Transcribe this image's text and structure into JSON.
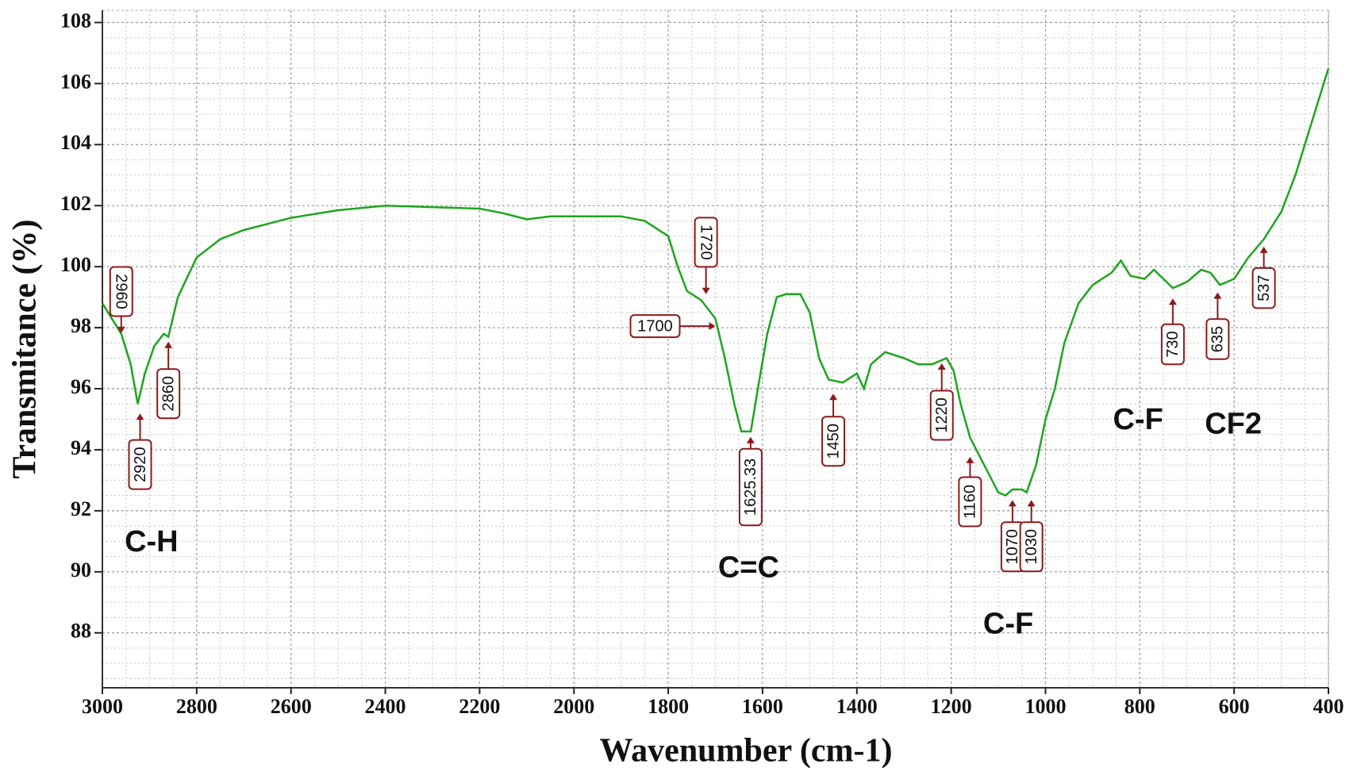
{
  "chart_data": {
    "type": "line",
    "x_label": "Wavenumber (cm-1)",
    "y_label": "Transmitance (%)",
    "x": [
      3000,
      2960,
      2940,
      2925,
      2910,
      2890,
      2870,
      2860,
      2840,
      2800,
      2750,
      2700,
      2600,
      2500,
      2400,
      2300,
      2200,
      2150,
      2100,
      2050,
      2000,
      1900,
      1850,
      1800,
      1780,
      1760,
      1730,
      1700,
      1680,
      1660,
      1645,
      1625,
      1610,
      1590,
      1570,
      1550,
      1520,
      1500,
      1480,
      1460,
      1430,
      1400,
      1385,
      1370,
      1340,
      1300,
      1270,
      1240,
      1210,
      1195,
      1180,
      1160,
      1130,
      1100,
      1085,
      1070,
      1050,
      1040,
      1020,
      1000,
      980,
      960,
      930,
      900,
      860,
      840,
      820,
      790,
      770,
      750,
      730,
      700,
      670,
      650,
      630,
      600,
      570,
      537,
      500,
      470,
      440,
      410,
      400
    ],
    "values": [
      98.8,
      97.8,
      96.8,
      95.5,
      96.5,
      97.4,
      97.8,
      97.7,
      99.0,
      100.3,
      100.9,
      101.2,
      101.6,
      101.85,
      102.0,
      101.95,
      101.9,
      101.75,
      101.55,
      101.65,
      101.65,
      101.65,
      101.5,
      101.0,
      100.0,
      99.2,
      98.9,
      98.3,
      97.0,
      95.5,
      94.6,
      94.6,
      96.0,
      97.8,
      99.0,
      99.1,
      99.1,
      98.5,
      97.0,
      96.3,
      96.2,
      96.5,
      96.0,
      96.8,
      97.2,
      97.0,
      96.8,
      96.8,
      97.0,
      96.6,
      95.5,
      94.4,
      93.5,
      92.6,
      92.5,
      92.7,
      92.7,
      92.6,
      93.5,
      95.0,
      96.0,
      97.5,
      98.8,
      99.4,
      99.8,
      100.2,
      99.7,
      99.6,
      99.9,
      99.6,
      99.3,
      99.5,
      99.9,
      99.8,
      99.4,
      99.6,
      100.3,
      100.9,
      101.8,
      103.0,
      104.5,
      106.0,
      106.5
    ],
    "color": "#1ea51e",
    "xlim": [
      3000,
      400
    ],
    "ylim": [
      86.2,
      108.4
    ],
    "xticks": [
      3000,
      2800,
      2600,
      2400,
      2200,
      2000,
      1800,
      1600,
      1400,
      1200,
      1000,
      800,
      600,
      400
    ],
    "yticks": [
      88,
      90,
      92,
      94,
      96,
      98,
      100,
      102,
      104,
      106,
      108
    ],
    "grid": true,
    "peak_labels": [
      "2960",
      "2920",
      "2860",
      "1720",
      "1700",
      "1625.33",
      "1450",
      "1220",
      "1160",
      "1070",
      "1030",
      "730",
      "635",
      "537"
    ],
    "group_labels": [
      "C-H",
      "C=C",
      "C-F",
      "C-F",
      "CF2"
    ]
  }
}
